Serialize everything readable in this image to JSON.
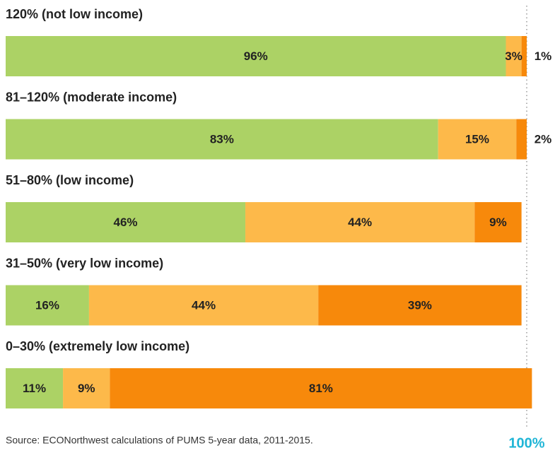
{
  "chart_data": {
    "type": "stacked_bar_horizontal",
    "categories": [
      "120% (not low income)",
      "81–120% (moderate income)",
      "51–80% (low income)",
      "31–50% (very low income)",
      "0–30% (extremely low income)"
    ],
    "series": [
      {
        "color": "#acd265",
        "values": [
          96,
          83,
          46,
          16,
          11
        ],
        "value_labels": [
          "96%",
          "83%",
          "46%",
          "16%",
          "11%"
        ]
      },
      {
        "color": "#fdb94a",
        "values": [
          3,
          15,
          44,
          44,
          9
        ],
        "value_labels": [
          "3%",
          "15%",
          "44%",
          "44%",
          "9%"
        ]
      },
      {
        "color": "#f7890b",
        "values": [
          1,
          2,
          9,
          39,
          81
        ],
        "value_labels": [
          "1%",
          "2%",
          "9%",
          "39%",
          "81%"
        ]
      }
    ],
    "xlim": [
      0,
      100
    ],
    "xticks": [
      {
        "value": 100,
        "label": "100%"
      }
    ],
    "source": "Source: ECONorthwest calculations of PUMS 5-year data, 2011-2015."
  }
}
